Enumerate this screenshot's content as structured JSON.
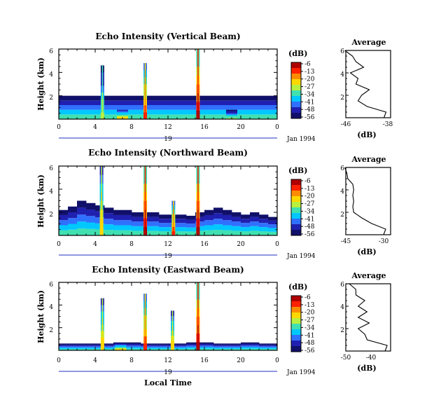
{
  "color_scale": {
    "unit": "(dB)",
    "labels": [
      "-6",
      "-13",
      "-20",
      "-27",
      "-34",
      "-41",
      "-48",
      "-56"
    ],
    "colors": [
      "#b00000",
      "#ff2200",
      "#ff8c00",
      "#ffd800",
      "#b8f040",
      "#40e0b0",
      "#00c8ff",
      "#3070ff",
      "#2020b0",
      "#10106a"
    ]
  },
  "panels": [
    {
      "title": "Echo Intensity (Vertical Beam)",
      "ylabel": "Height (km)",
      "date_label": "Jan 1994",
      "day_label": "19",
      "x_ticks": [
        "0",
        "4",
        "8",
        "12",
        "16",
        "20",
        "0"
      ],
      "y_ticks": [
        "6",
        "4",
        "2"
      ],
      "profile": {
        "title": "Average",
        "xlabel": "(dB)",
        "x_ticks": [
          "-46",
          "-38"
        ],
        "y_ticks": [
          "6",
          "4",
          "2"
        ]
      }
    },
    {
      "title": "Echo Intensity (Northward Beam)",
      "ylabel": "Height (km)",
      "date_label": "Jan 1994",
      "day_label": "19",
      "x_ticks": [
        "0",
        "4",
        "8",
        "12",
        "16",
        "20",
        "0"
      ],
      "y_ticks": [
        "6",
        "4",
        "2"
      ],
      "profile": {
        "title": "Average",
        "xlabel": "(dB)",
        "x_ticks": [
          "-45",
          "-30"
        ],
        "y_ticks": [
          "6",
          "4",
          "2"
        ]
      }
    },
    {
      "title": "Echo Intensity (Eastward Beam)",
      "ylabel": "Height (km)",
      "date_label": "Jan 1994",
      "day_label": "19",
      "x_ticks": [
        "0",
        "4",
        "8",
        "12",
        "16",
        "20",
        "0"
      ],
      "y_ticks": [
        "6",
        "4",
        "2"
      ],
      "profile": {
        "title": "Average",
        "xlabel": "(dB)",
        "x_ticks": [
          "-50",
          "-40"
        ],
        "y_ticks": [
          "6",
          "4",
          "2"
        ]
      }
    }
  ],
  "xlabel": "Local Time",
  "chart_data": [
    {
      "type": "heatmap",
      "title": "Echo Intensity (Vertical Beam)",
      "xlabel": "",
      "ylabel": "Height (km)",
      "xlim": [
        0,
        24
      ],
      "ylim": [
        0,
        6
      ],
      "units": "dB",
      "clim": [
        -56,
        -6
      ],
      "echo_top_km": [
        2.0,
        2.0,
        2.0,
        2.0,
        2.0,
        2.0,
        2.0,
        2.0,
        2.0,
        2.0,
        2.0,
        2.0,
        2.0,
        2.0,
        2.0,
        2.0,
        2.0,
        2.0,
        2.0,
        2.0,
        2.0,
        2.0,
        2.0,
        2.0
      ],
      "convective_cells": [
        {
          "time_h": 4.8,
          "top_km": 4.6,
          "peak_db": -27
        },
        {
          "time_h": 9.5,
          "top_km": 4.8,
          "peak_db": -13
        },
        {
          "time_h": 15.3,
          "top_km": 6.0,
          "peak_db": -6
        },
        {
          "time_h": 7.0,
          "top_km": 0.8,
          "peak_db": -20
        },
        {
          "time_h": 19.0,
          "top_km": 0.8,
          "peak_db": -27
        }
      ],
      "average_profile": {
        "xlim": [
          -46,
          -38
        ],
        "height_km": [
          0.5,
          1.0,
          1.5,
          2.0,
          2.5,
          3.0,
          3.5,
          4.0,
          4.5,
          5.0,
          5.5,
          6.0
        ],
        "db": [
          -39,
          -42,
          -44,
          -43,
          -42,
          -44,
          -44,
          -45,
          -43,
          -44,
          -45,
          -46
        ]
      }
    },
    {
      "type": "heatmap",
      "title": "Echo Intensity (Northward Beam)",
      "xlabel": "",
      "ylabel": "Height (km)",
      "xlim": [
        0,
        24
      ],
      "ylim": [
        0,
        6
      ],
      "units": "dB",
      "clim": [
        -56,
        -6
      ],
      "echo_top_km": [
        2.2,
        2.5,
        3.0,
        2.8,
        2.6,
        2.4,
        2.2,
        2.2,
        2.0,
        2.0,
        2.0,
        1.8,
        1.8,
        1.8,
        1.7,
        2.0,
        2.2,
        2.4,
        2.2,
        2.0,
        1.8,
        2.0,
        1.8,
        1.6
      ],
      "convective_cells": [
        {
          "time_h": 4.7,
          "top_km": 6.0,
          "peak_db": -20
        },
        {
          "time_h": 9.5,
          "top_km": 6.0,
          "peak_db": -6
        },
        {
          "time_h": 12.6,
          "top_km": 3.0,
          "peak_db": -13
        },
        {
          "time_h": 15.3,
          "top_km": 6.0,
          "peak_db": -6
        }
      ],
      "average_profile": {
        "xlim": [
          -45,
          -30
        ],
        "height_km": [
          0.5,
          1.0,
          1.5,
          2.0,
          2.5,
          3.0,
          3.5,
          4.0,
          4.5,
          5.0,
          5.5,
          6.0
        ],
        "db": [
          -32,
          -36,
          -40,
          -42,
          -43,
          -42,
          -43,
          -42,
          -43,
          -44,
          -45,
          -45
        ]
      }
    },
    {
      "type": "heatmap",
      "title": "Echo Intensity (Eastward Beam)",
      "xlabel": "Local Time",
      "ylabel": "Height (km)",
      "xlim": [
        0,
        24
      ],
      "ylim": [
        0,
        6
      ],
      "units": "dB",
      "clim": [
        -56,
        -6
      ],
      "echo_top_km": [
        0.6,
        0.6,
        0.6,
        0.6,
        0.6,
        0.6,
        0.7,
        0.7,
        0.7,
        0.6,
        0.6,
        0.6,
        0.6,
        0.6,
        0.7,
        0.7,
        0.7,
        0.6,
        0.6,
        0.6,
        0.7,
        0.7,
        0.6,
        0.6
      ],
      "convective_cells": [
        {
          "time_h": 4.8,
          "top_km": 4.6,
          "peak_db": -20
        },
        {
          "time_h": 9.5,
          "top_km": 5.0,
          "peak_db": -13
        },
        {
          "time_h": 12.5,
          "top_km": 3.5,
          "peak_db": -20
        },
        {
          "time_h": 15.3,
          "top_km": 6.0,
          "peak_db": -6
        },
        {
          "time_h": 6.8,
          "top_km": 0.6,
          "peak_db": -20
        }
      ],
      "average_profile": {
        "xlim": [
          -50,
          -30
        ],
        "height_km": [
          0.5,
          1.0,
          1.5,
          2.0,
          2.5,
          3.0,
          3.5,
          4.0,
          4.5,
          5.0,
          5.5,
          6.0
        ],
        "db": [
          -32,
          -40,
          -42,
          -44,
          -40,
          -44,
          -41,
          -44,
          -42,
          -45,
          -46,
          -48
        ]
      }
    }
  ]
}
